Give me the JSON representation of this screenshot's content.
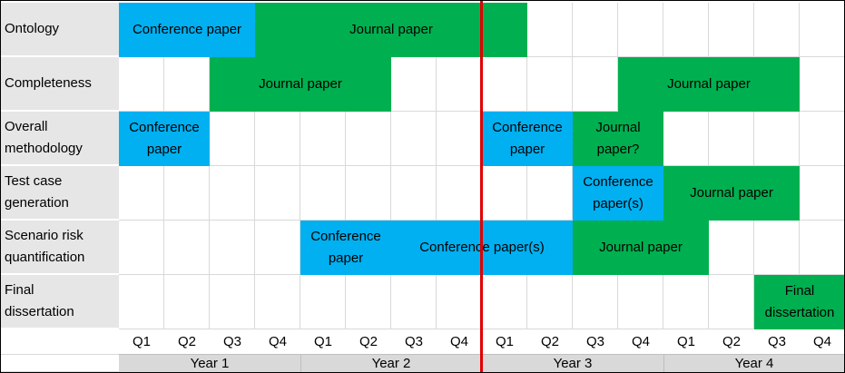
{
  "rows": [
    {
      "label": "Ontology"
    },
    {
      "label": "Completeness"
    },
    {
      "label": "Overall\nmethodology"
    },
    {
      "label": "Test case\ngeneration"
    },
    {
      "label": "Scenario risk\nquantification"
    },
    {
      "label": "Final\ndissertation"
    }
  ],
  "quarters": [
    "Q1",
    "Q2",
    "Q3",
    "Q4",
    "Q1",
    "Q2",
    "Q3",
    "Q4",
    "Q1",
    "Q2",
    "Q3",
    "Q4",
    "Q1",
    "Q2",
    "Q3",
    "Q4"
  ],
  "years": [
    "Year 1",
    "Year 2",
    "Year 3",
    "Year 4"
  ],
  "bars": [
    {
      "row": 0,
      "start": 0,
      "span": 3,
      "type": "conference",
      "text": "Conference paper"
    },
    {
      "row": 0,
      "start": 3,
      "span": 6,
      "type": "journal",
      "text": "Journal paper"
    },
    {
      "row": 1,
      "start": 2,
      "span": 4,
      "type": "journal",
      "text": "Journal paper"
    },
    {
      "row": 1,
      "start": 11,
      "span": 4,
      "type": "journal",
      "text": "Journal paper"
    },
    {
      "row": 2,
      "start": 0,
      "span": 2,
      "type": "conference",
      "text": "Conference\npaper"
    },
    {
      "row": 2,
      "start": 8,
      "span": 2,
      "type": "conference",
      "text": "Conference\npaper"
    },
    {
      "row": 2,
      "start": 10,
      "span": 2,
      "type": "journal",
      "text": "Journal\npaper?"
    },
    {
      "row": 3,
      "start": 10,
      "span": 2,
      "type": "conference",
      "text": "Conference\npaper(s)"
    },
    {
      "row": 3,
      "start": 12,
      "span": 3,
      "type": "journal",
      "text": "Journal paper"
    },
    {
      "row": 4,
      "start": 4,
      "span": 2,
      "type": "conference",
      "text": "Conference\npaper"
    },
    {
      "row": 4,
      "start": 6,
      "span": 4,
      "type": "conference",
      "text": "Conference paper(s)"
    },
    {
      "row": 4,
      "start": 10,
      "span": 3,
      "type": "journal",
      "text": "Journal paper"
    },
    {
      "row": 5,
      "start": 14,
      "span": 2,
      "type": "journal",
      "text": "Final\ndissertation"
    }
  ],
  "colors": {
    "conference": "#00b0f0",
    "journal": "#00b050",
    "today_line": "#e00000"
  },
  "today_marker_after_quarter": 8
}
